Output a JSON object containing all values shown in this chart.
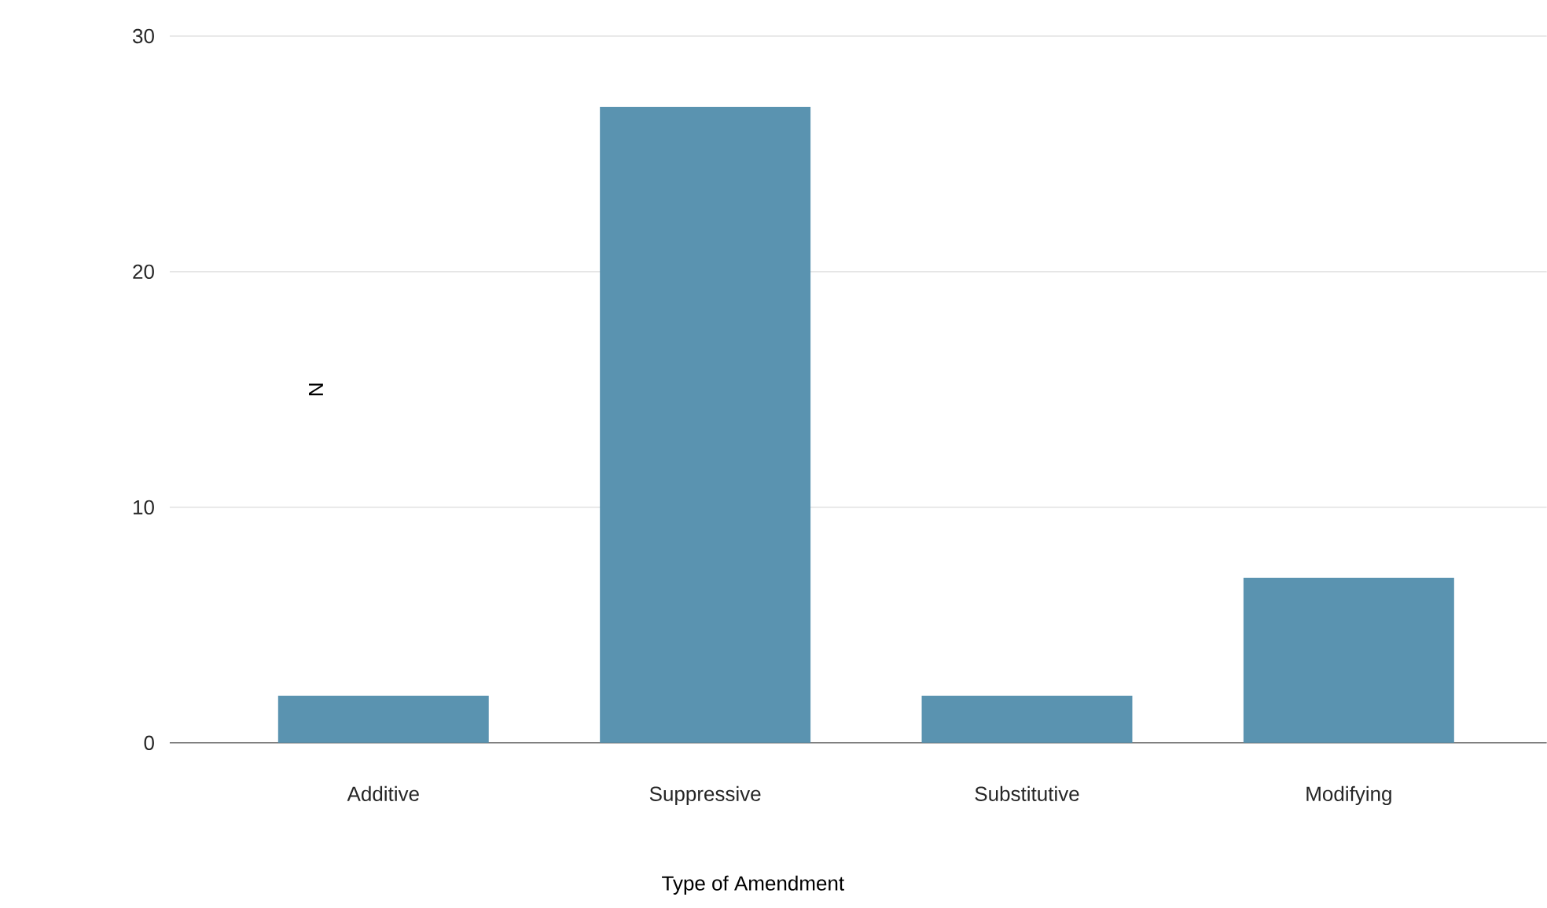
{
  "chart_data": {
    "type": "bar",
    "xlabel": "Type of Amendment",
    "ylabel": "N",
    "categories": [
      "Additive",
      "Suppressive",
      "Substitutive",
      "Modifying"
    ],
    "values": [
      2,
      27,
      2,
      7
    ],
    "color": "#5a93b0",
    "ylim": [
      0,
      30
    ],
    "yticks": [
      0,
      10,
      20,
      30
    ],
    "grid": "y"
  }
}
